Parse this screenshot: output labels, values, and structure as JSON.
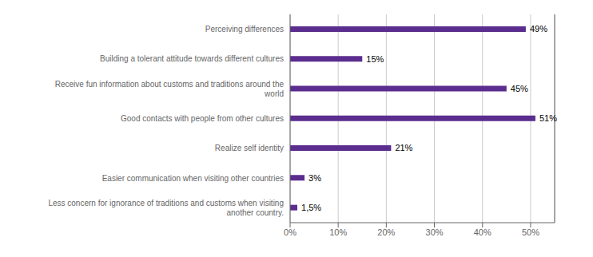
{
  "chart_data": {
    "type": "bar",
    "orientation": "horizontal",
    "categories": [
      "Less concern for ignorance of traditions and customs when visiting\nanother country.",
      "Easier communication when visiting other countries",
      "Realize self identity",
      "Good contacts with people from other cultures",
      "Receive fun information about customs and traditions around the\nworld",
      "Building a tolerant attitude towards different cultures",
      "Perceiving differences"
    ],
    "values": [
      1.5,
      3,
      21,
      51,
      45,
      15,
      49
    ],
    "value_labels": [
      "1,5%",
      "3%",
      "21%",
      "51%",
      "45%",
      "15%",
      "49%"
    ],
    "data_labels": true,
    "color": "#5B2D8E",
    "xlim": [
      0,
      55
    ],
    "xticks": [
      {
        "value": 0,
        "label": "0%"
      },
      {
        "value": 10,
        "label": "10%"
      },
      {
        "value": 20,
        "label": "20%"
      },
      {
        "value": 30,
        "label": "30%"
      },
      {
        "value": 40,
        "label": "40%"
      },
      {
        "value": 50,
        "label": "50%"
      }
    ],
    "grid": true
  }
}
